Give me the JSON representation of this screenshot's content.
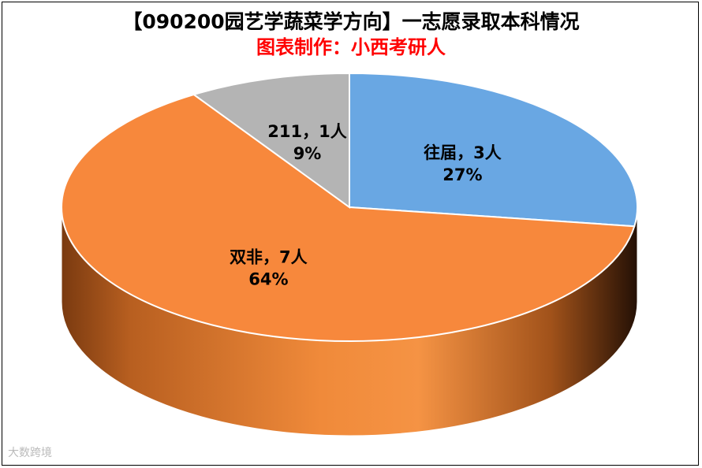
{
  "chart_data": {
    "type": "pie",
    "title": "【090200园艺学蔬菜学方向】一志愿录取本科情况",
    "subtitle": "图表制作：小西考研人",
    "slices": [
      {
        "name": "往届",
        "count_label": "往届，3人",
        "value": 3,
        "percent": 27,
        "percent_label": "27%",
        "color": "#69a7e3"
      },
      {
        "name": "双非",
        "count_label": "双非，7人",
        "value": 7,
        "percent": 64,
        "percent_label": "64%",
        "color": "#f7883c"
      },
      {
        "name": "211",
        "count_label": "211，1人",
        "value": 1,
        "percent": 9,
        "percent_label": "9%",
        "color": "#b4b4b4"
      }
    ],
    "style": "3d-pie"
  },
  "watermark": "大数跨境"
}
